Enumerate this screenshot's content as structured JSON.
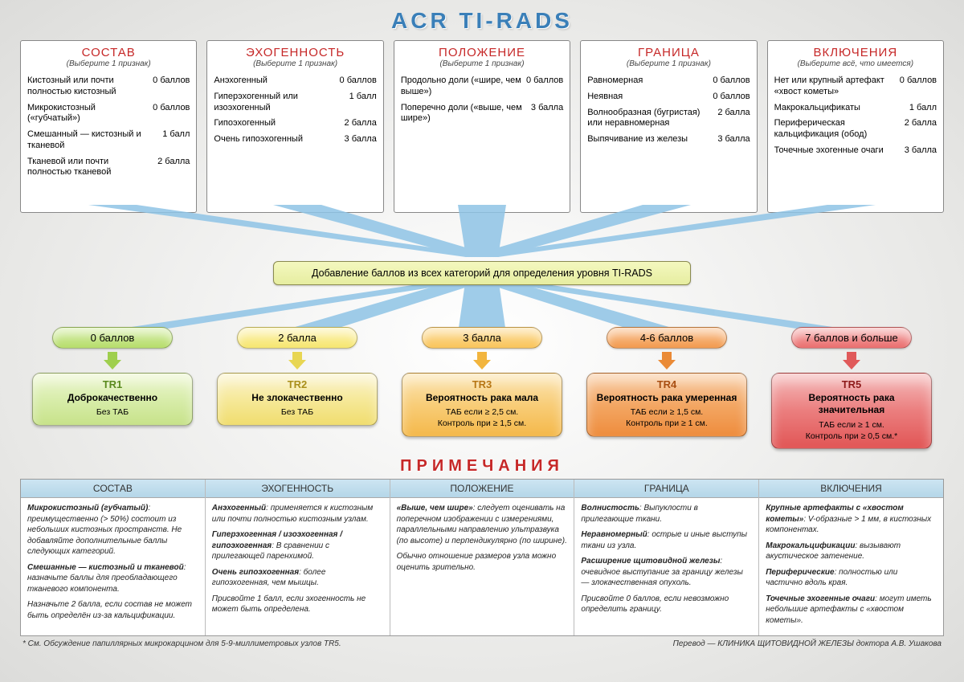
{
  "title": "ACR TI-RADS",
  "categories": [
    {
      "title": "СОСТАВ",
      "sub": "(Выберите 1 признак)",
      "rows": [
        {
          "l": "Кистозный или почти полностью кистозный",
          "r": "0 баллов"
        },
        {
          "l": "Микрокистозный («губчатый»)",
          "r": "0 баллов"
        },
        {
          "l": "Смешанный — кистозный и тканевой",
          "r": "1 балл"
        },
        {
          "l": "Тканевой или почти полностью тканевой",
          "r": "2 балла"
        }
      ]
    },
    {
      "title": "ЭХОГЕННОСТЬ",
      "sub": "(Выберите 1 признак)",
      "rows": [
        {
          "l": "Анэхогенный",
          "r": "0 баллов"
        },
        {
          "l": "Гиперэхогенный или изоэхогенный",
          "r": "1 балл"
        },
        {
          "l": "Гипоэхогенный",
          "r": "2 балла"
        },
        {
          "l": "Очень гипоэхогенный",
          "r": "3 балла"
        }
      ]
    },
    {
      "title": "ПОЛОЖЕНИЕ",
      "sub": "(Выберите 1 признак)",
      "rows": [
        {
          "l": "Продольно доли («шире, чем выше»)",
          "r": "0 баллов"
        },
        {
          "l": "Поперечно доли («выше, чем шире»)",
          "r": "3 балла"
        }
      ]
    },
    {
      "title": "ГРАНИЦА",
      "sub": "(Выберите 1 признак)",
      "rows": [
        {
          "l": "Равномерная",
          "r": "0 баллов"
        },
        {
          "l": "Неявная",
          "r": "0 баллов"
        },
        {
          "l": "Волнообразная (бугристая) или неравномерная",
          "r": "2 балла"
        },
        {
          "l": "Выпячивание из железы",
          "r": "3 балла"
        }
      ]
    },
    {
      "title": "ВКЛЮЧЕНИЯ",
      "sub": "(Выберите всё, что имеется)",
      "rows": [
        {
          "l": "Нет или крупный артефакт «хвост кометы»",
          "r": "0 баллов"
        },
        {
          "l": "Макрокальцификаты",
          "r": "1 балл"
        },
        {
          "l": "Периферическая кальцификация (обод)",
          "r": "2 балла"
        },
        {
          "l": "Точечные эхогенные очаги",
          "r": "3 балла"
        }
      ]
    }
  ],
  "merge_text": "Добавление баллов из всех категорий для определения уровня TI-RADS",
  "levels": [
    {
      "pill": "0 баллов",
      "pill_bg": "linear-gradient(#d9efb0,#b6dd6a)",
      "arrow_color": "#9fcf4e",
      "box_bg": "linear-gradient(#eef7d3,#d8edab,#c7e289)",
      "tr": "TR1",
      "tr_color": "#5a8a1e",
      "desc": "Доброкачественно",
      "act": "Без ТАБ"
    },
    {
      "pill": "2 балла",
      "pill_bg": "linear-gradient(#fdf3b8,#f6e66f)",
      "arrow_color": "#e8d653",
      "box_bg": "linear-gradient(#fbf4cf,#f6e99a,#f0dd6e)",
      "tr": "TR2",
      "tr_color": "#a98f1a",
      "desc": "Не злокачественно",
      "act": "Без ТАБ"
    },
    {
      "pill": "3 балла",
      "pill_bg": "linear-gradient(#fde0a3,#f9c45a)",
      "arrow_color": "#f2b53e",
      "box_bg": "linear-gradient(#fce6b6,#f8cd78,#f4b84a)",
      "tr": "TR3",
      "tr_color": "#b77614",
      "desc": "Вероятность рака мала",
      "act": "ТАБ если ≥ 2,5 см.<br>Контроль при ≥ 1,5 см."
    },
    {
      "pill": "4-6 баллов",
      "pill_bg": "linear-gradient(#fac79a,#f29a4e)",
      "arrow_color": "#ea8a36",
      "box_bg": "linear-gradient(#f9d0ab,#f3a764,#ee8c3c)",
      "tr": "TR4",
      "tr_color": "#a84e12",
      "desc": "Вероятность рака умеренная",
      "act": "ТАБ если ≥ 1,5 см.<br>Контроль при ≥ 1 см."
    },
    {
      "pill": "7 баллов и больше",
      "pill_bg": "linear-gradient(#f6b6b6,#ea6d6d)",
      "arrow_color": "#e05a5a",
      "box_bg": "linear-gradient(#f5bcbc,#eb7e7e,#e15555)",
      "tr": "TR5",
      "tr_color": "#8e1a1a",
      "desc": "Вероятность рака значительная",
      "act": "ТАБ если ≥ 1 см.<br>Контроль при ≥ 0,5 см.*"
    }
  ],
  "notes_title": "ПРИМЕЧАНИЯ",
  "notes": [
    {
      "head": "СОСТАВ",
      "body": "<p><b>Микрокистозный (губчатый)</b>: преимущественно (> 50%) состоит из небольших кистозных пространств. Не добавляйте дополнительные баллы следующих категорий.</p><p><b>Смешанные — кистозный и тканевой</b>: назначьте баллы для преобладающего тканевого компонента.</p><p>Назначьте 2 балла, если состав не может быть определён из-за кальцификации.</p>"
    },
    {
      "head": "ЭХОГЕННОСТЬ",
      "body": "<p><b>Анэхогенный</b>: применяется к кистозным или почти полностью кистозным узлам.</p><p><b>Гиперэхогенная / изоэхогенная / гипоэхогенная</b>: В сравнении с прилегающей паренхимой.</p><p><b>Очень гипоэхогенная</b>: более гипоэхогенная, чем мышцы.</p><p>Присвойте 1 балл, если эхогенность не может быть определена.</p>"
    },
    {
      "head": "ПОЛОЖЕНИЕ",
      "body": "<p><b>«Выше, чем шире»</b>: следует оценивать на поперечном изображении с измерениями, параллельными направлению ультразвука (по высоте) и перпендикулярно (по ширине).</p><p>Обычно отношение размеров узла можно оценить зрительно.</p>"
    },
    {
      "head": "ГРАНИЦА",
      "body": "<p><b>Волнистость</b>: Выпуклости в прилегающие ткани.</p><p><b>Неравномерный</b>: острые и иные выступы ткани из узла.</p><p><b>Расширение щитовидной железы</b>: очевидное выступание за границу железы — злокачественная опухоль.</p><p>Присвойте 0 баллов, если невозможно определить границу.</p>"
    },
    {
      "head": "ВКЛЮЧЕНИЯ",
      "body": "<p><b>Крупные артефакты с «хвостом кометы»</b>: V-образные > 1 мм, в кистозных компонентах.</p><p><b>Макрокальцификации</b>: вызывают акустическое затенение.</p><p><b>Периферические</b>: полностью или частично вдоль края.</p><p><b>Точечные эхогенные очаги</b>: могут иметь небольшие артефакты с «хвостом кометы».</p>"
    }
  ],
  "footnote_left": "* См. Обсуждение папиллярных микрокарцином для 5-9-миллиметровых узлов TR5.",
  "footnote_right": "Перевод — КЛИНИКА ЩИТОВИДНОЙ ЖЕЛЕЗЫ доктора А.В. Ушакова",
  "flow_color": "#8fc4e6"
}
